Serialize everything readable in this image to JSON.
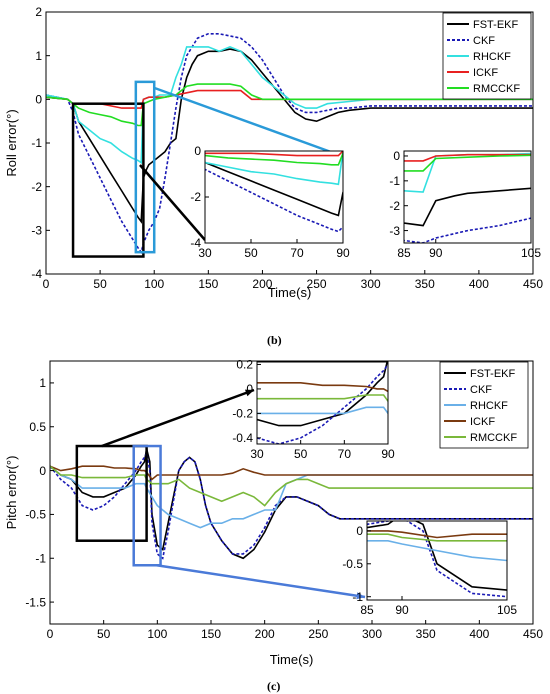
{
  "figure": {
    "panel_b_label": "(b)",
    "panel_c_label": "(c)"
  },
  "chart_data": [
    {
      "type": "line",
      "panel": "b",
      "xlabel": "Time(s)",
      "ylabel": "Roll error(°)",
      "xlim": [
        0,
        450
      ],
      "ylim": [
        -4,
        2
      ],
      "xticks": [
        0,
        50,
        100,
        150,
        200,
        250,
        300,
        350,
        400,
        450
      ],
      "yticks": [
        -4,
        -3,
        -2,
        -1,
        0,
        1,
        2
      ],
      "legend_position": "top-right",
      "series": [
        {
          "name": "FST-EKF",
          "color": "#000000",
          "dash": "",
          "width": 1.6,
          "x": [
            0,
            20,
            25,
            30,
            40,
            50,
            60,
            70,
            80,
            85,
            88,
            90,
            93,
            95,
            100,
            105,
            110,
            115,
            120,
            125,
            130,
            135,
            140,
            150,
            160,
            170,
            180,
            190,
            200,
            210,
            220,
            230,
            240,
            250,
            260,
            270,
            280,
            300,
            350,
            400,
            450
          ],
          "y": [
            0.05,
            0,
            -0.1,
            -0.5,
            -0.9,
            -1.3,
            -1.7,
            -2.1,
            -2.5,
            -2.7,
            -2.8,
            -1.8,
            -1.6,
            -1.5,
            -1.4,
            -1.3,
            -1.2,
            -1.0,
            -0.9,
            0.0,
            0.5,
            0.8,
            1.0,
            1.1,
            1.1,
            1.15,
            1.1,
            0.9,
            0.6,
            0.3,
            0.0,
            -0.3,
            -0.45,
            -0.5,
            -0.4,
            -0.3,
            -0.25,
            -0.2,
            -0.2,
            -0.2,
            -0.2
          ]
        },
        {
          "name": "CKF",
          "color": "#1a1ab5",
          "dash": "3,2",
          "width": 1.6,
          "x": [
            0,
            20,
            25,
            30,
            40,
            50,
            60,
            70,
            80,
            85,
            88,
            90,
            95,
            100,
            105,
            110,
            115,
            120,
            125,
            130,
            140,
            150,
            160,
            170,
            180,
            190,
            200,
            210,
            220,
            230,
            240,
            250,
            260,
            270,
            280,
            300,
            350,
            400,
            450
          ],
          "y": [
            0.1,
            0,
            -0.3,
            -0.8,
            -1.3,
            -1.8,
            -2.3,
            -2.8,
            -3.2,
            -3.4,
            -3.5,
            -3.3,
            -3.0,
            -2.8,
            -2.5,
            -1.8,
            -1.0,
            -0.2,
            0.5,
            1.0,
            1.4,
            1.5,
            1.5,
            1.45,
            1.4,
            1.2,
            0.9,
            0.5,
            0.1,
            -0.2,
            -0.3,
            -0.3,
            -0.25,
            -0.2,
            -0.2,
            -0.15,
            -0.15,
            -0.15,
            -0.15
          ]
        },
        {
          "name": "RHCKF",
          "color": "#33e0e0",
          "dash": "",
          "width": 1.6,
          "x": [
            0,
            20,
            25,
            30,
            40,
            50,
            60,
            70,
            80,
            85,
            88,
            90,
            95,
            100,
            105,
            110,
            115,
            120,
            125,
            130,
            140,
            150,
            160,
            170,
            180,
            190,
            200,
            210,
            220,
            230,
            240,
            250,
            260,
            280,
            300,
            350,
            400,
            450
          ],
          "y": [
            0.1,
            0,
            -0.1,
            -0.5,
            -0.7,
            -0.9,
            -1.0,
            -1.2,
            -1.35,
            -1.4,
            -1.45,
            0.0,
            0.05,
            0.05,
            0.1,
            0.1,
            0.1,
            0.5,
            0.8,
            1.2,
            1.2,
            1.2,
            1.1,
            1.2,
            1.1,
            0.8,
            0.5,
            0.3,
            0.1,
            -0.1,
            -0.2,
            -0.2,
            -0.1,
            -0.05,
            0,
            0,
            0,
            0
          ]
        },
        {
          "name": "ICKF",
          "color": "#e82020",
          "dash": "",
          "width": 1.6,
          "x": [
            0,
            20,
            25,
            30,
            40,
            50,
            60,
            70,
            80,
            85,
            88,
            90,
            95,
            100,
            105,
            110,
            120,
            130,
            140,
            150,
            160,
            170,
            180,
            190,
            200,
            220,
            250,
            300,
            350,
            400,
            450
          ],
          "y": [
            0.05,
            0,
            -0.1,
            -0.1,
            -0.1,
            -0.1,
            -0.15,
            -0.2,
            -0.2,
            -0.2,
            -0.2,
            0.0,
            0.05,
            0.05,
            0.05,
            0.05,
            0.1,
            0.15,
            0.2,
            0.2,
            0.2,
            0.2,
            0.2,
            0.0,
            0.0,
            0.0,
            0.0,
            0.0,
            0.0,
            0.0,
            0.0
          ]
        },
        {
          "name": "RMCCKF",
          "color": "#22dd22",
          "dash": "",
          "width": 1.6,
          "x": [
            0,
            20,
            25,
            30,
            40,
            50,
            60,
            70,
            80,
            85,
            88,
            90,
            95,
            100,
            110,
            120,
            130,
            140,
            150,
            160,
            170,
            180,
            190,
            200,
            220,
            250,
            300,
            350,
            400,
            450
          ],
          "y": [
            0.05,
            0,
            -0.1,
            -0.2,
            -0.3,
            -0.35,
            -0.4,
            -0.5,
            -0.55,
            -0.6,
            -0.6,
            -0.1,
            -0.05,
            0,
            0.05,
            0.1,
            0.3,
            0.35,
            0.35,
            0.35,
            0.35,
            0.3,
            0.1,
            0.0,
            0.0,
            0.0,
            0.0,
            0.0,
            0.0,
            0.0
          ]
        }
      ],
      "insets": [
        {
          "xlim": [
            30,
            90
          ],
          "ylim": [
            -4,
            0
          ],
          "xticks": [
            30,
            50,
            70,
            90
          ],
          "yticks": [
            -4,
            -2,
            0
          ],
          "source_box_xlim": [
            25,
            90
          ],
          "source_box_ylim": [
            -3.6,
            -0.1
          ]
        },
        {
          "xlim": [
            85,
            105
          ],
          "ylim": [
            -3.5,
            0.2
          ],
          "xticks": [
            85,
            90,
            105
          ],
          "yticks": [
            -3,
            -2,
            -1,
            0
          ],
          "source_box_xlim": [
            83,
            100
          ],
          "source_box_ylim": [
            -3.5,
            0.4
          ]
        }
      ]
    },
    {
      "type": "line",
      "panel": "c",
      "xlabel": "Time(s)",
      "ylabel": "Pitch error(°)",
      "xlim": [
        0,
        450
      ],
      "ylim": [
        -1.75,
        1.25
      ],
      "xticks": [
        0,
        50,
        100,
        150,
        200,
        250,
        300,
        350,
        400,
        450
      ],
      "yticks": [
        -1.5,
        -1,
        -0.5,
        0,
        0.5,
        1
      ],
      "legend_position": "top-right",
      "series": [
        {
          "name": "FST-EKF",
          "color": "#000000",
          "dash": "",
          "width": 1.6,
          "x": [
            0,
            10,
            20,
            30,
            40,
            50,
            60,
            70,
            80,
            85,
            88,
            90,
            93,
            95,
            100,
            105,
            110,
            115,
            120,
            125,
            130,
            135,
            140,
            145,
            150,
            155,
            160,
            170,
            180,
            190,
            200,
            210,
            220,
            230,
            240,
            250,
            260,
            270,
            280,
            300,
            350,
            400,
            450
          ],
          "y": [
            0.05,
            -0.05,
            -0.1,
            -0.25,
            -0.3,
            -0.3,
            -0.25,
            -0.2,
            -0.05,
            0.05,
            0.1,
            0.25,
            0.1,
            -0.5,
            -0.85,
            -0.9,
            -0.6,
            -0.3,
            0.0,
            0.1,
            0.15,
            0.1,
            -0.1,
            -0.4,
            -0.6,
            -0.7,
            -0.8,
            -0.95,
            -1.0,
            -0.9,
            -0.7,
            -0.45,
            -0.3,
            -0.3,
            -0.35,
            -0.4,
            -0.5,
            -0.55,
            -0.55,
            -0.55,
            -0.55,
            -0.55,
            -0.55
          ]
        },
        {
          "name": "CKF",
          "color": "#1a1ab5",
          "dash": "3,2",
          "width": 1.6,
          "x": [
            0,
            10,
            20,
            30,
            40,
            50,
            60,
            70,
            80,
            85,
            88,
            90,
            93,
            95,
            100,
            105,
            110,
            115,
            120,
            125,
            130,
            135,
            140,
            145,
            150,
            155,
            160,
            170,
            180,
            190,
            200,
            210,
            220,
            230,
            240,
            250,
            260,
            270,
            280,
            300,
            350,
            400,
            450
          ],
          "y": [
            0.05,
            -0.1,
            -0.2,
            -0.4,
            -0.45,
            -0.4,
            -0.3,
            -0.15,
            0.0,
            0.1,
            0.15,
            0.2,
            0.0,
            -0.6,
            -0.95,
            -1.0,
            -0.7,
            -0.35,
            0.0,
            0.1,
            0.15,
            0.1,
            -0.1,
            -0.4,
            -0.6,
            -0.7,
            -0.8,
            -0.95,
            -0.95,
            -0.85,
            -0.65,
            -0.4,
            -0.3,
            -0.3,
            -0.35,
            -0.4,
            -0.5,
            -0.55,
            -0.55,
            -0.55,
            -0.55,
            -0.55,
            -0.55
          ]
        },
        {
          "name": "RHCKF",
          "color": "#6ab0e8",
          "dash": "",
          "width": 1.6,
          "x": [
            0,
            10,
            20,
            30,
            40,
            50,
            60,
            70,
            80,
            85,
            88,
            90,
            95,
            100,
            110,
            120,
            130,
            140,
            150,
            160,
            170,
            180,
            190,
            200,
            210,
            215,
            220,
            230,
            240,
            250,
            260,
            280,
            300,
            350,
            400,
            450
          ],
          "y": [
            0.05,
            -0.05,
            -0.1,
            -0.2,
            -0.2,
            -0.2,
            -0.2,
            -0.2,
            -0.15,
            -0.15,
            -0.15,
            -0.2,
            -0.3,
            -0.4,
            -0.5,
            -0.55,
            -0.6,
            -0.65,
            -0.6,
            -0.6,
            -0.55,
            -0.55,
            -0.5,
            -0.45,
            -0.45,
            -0.3,
            -0.15,
            -0.1,
            -0.05,
            -0.05,
            -0.05,
            -0.05,
            -0.05,
            -0.05,
            -0.05,
            -0.05
          ]
        },
        {
          "name": "ICKF",
          "color": "#7a3a10",
          "dash": "",
          "width": 1.6,
          "x": [
            0,
            10,
            20,
            30,
            40,
            50,
            60,
            70,
            80,
            85,
            88,
            90,
            95,
            100,
            110,
            120,
            130,
            140,
            150,
            160,
            170,
            180,
            190,
            200,
            220,
            250,
            300,
            350,
            400,
            450
          ],
          "y": [
            0.05,
            0.0,
            0.02,
            0.05,
            0.05,
            0.05,
            0.03,
            0.03,
            0.02,
            0.0,
            0.0,
            -0.02,
            -0.1,
            -0.05,
            -0.05,
            -0.05,
            -0.05,
            -0.05,
            -0.05,
            -0.05,
            -0.03,
            0.02,
            -0.02,
            -0.05,
            -0.05,
            -0.05,
            -0.05,
            -0.05,
            -0.05,
            -0.05
          ]
        },
        {
          "name": "RMCCKF",
          "color": "#7ab83a",
          "dash": "",
          "width": 1.6,
          "x": [
            0,
            10,
            20,
            30,
            40,
            50,
            60,
            70,
            80,
            85,
            88,
            90,
            95,
            100,
            110,
            120,
            130,
            140,
            150,
            160,
            170,
            180,
            190,
            200,
            210,
            220,
            230,
            240,
            250,
            260,
            280,
            300,
            350,
            400,
            450
          ],
          "y": [
            0.05,
            -0.05,
            -0.05,
            -0.08,
            -0.08,
            -0.08,
            -0.08,
            -0.08,
            -0.05,
            -0.05,
            -0.05,
            -0.1,
            -0.15,
            -0.15,
            -0.15,
            -0.1,
            -0.2,
            -0.25,
            -0.3,
            -0.35,
            -0.3,
            -0.25,
            -0.3,
            -0.4,
            -0.25,
            -0.15,
            -0.1,
            -0.1,
            -0.15,
            -0.2,
            -0.2,
            -0.2,
            -0.2,
            -0.2,
            -0.2
          ]
        }
      ],
      "insets": [
        {
          "xlim": [
            30,
            90
          ],
          "ylim": [
            -0.45,
            0.22
          ],
          "xticks": [
            30,
            50,
            70,
            90
          ],
          "yticks": [
            -0.4,
            -0.2,
            0,
            0.2
          ],
          "source_box_xlim": [
            25,
            90
          ],
          "source_box_ylim": [
            -0.8,
            0.28
          ]
        },
        {
          "xlim": [
            85,
            105
          ],
          "ylim": [
            -1.05,
            0.15
          ],
          "xticks": [
            85,
            90,
            105
          ],
          "yticks": [
            -1,
            -0.5,
            0
          ],
          "source_box_xlim": [
            78,
            103
          ],
          "source_box_ylim": [
            -1.08,
            0.28
          ]
        }
      ]
    }
  ]
}
